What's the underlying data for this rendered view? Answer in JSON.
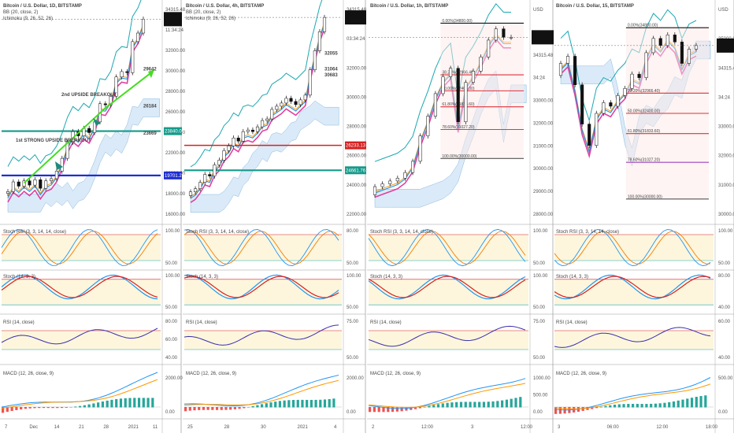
{
  "colors": {
    "bb_upper": "#1aa8b0",
    "bb_mid": "#e040a0",
    "bb_lower": "#f5a020",
    "kijun": "#d62020",
    "tenkan": "#2090e0",
    "cloud": "#cfe3f5",
    "fib_red": "#e0303a",
    "fib_purple": "#a040c0",
    "teal": "#159a8a",
    "blue_line": "#1f2fd0",
    "green_arrow": "#44dd22",
    "stoch_k": "#2196f3",
    "stoch_d": "#f57c00",
    "macd": "#2196f3",
    "signal": "#ff9800",
    "hist_pos": "#26a69a",
    "hist_neg": "#ef5350",
    "rsi": "#3a30b0",
    "candle_up": "#ffffff",
    "candle_down": "#111111"
  },
  "panels": [
    {
      "title": "Bitcoin / U.S. Dollar, 1D, BITSTAMP",
      "bb_label": "BB (20, close, 2)",
      "ichi_label": "Ichimoku (9, 26, 52, 26)",
      "stoch_rsi_label": "Stoch RSI (3, 3, 14, 14, close)",
      "stoch_label": "Stoch (14, 3, 3)",
      "rsi_label": "RSI (14, close)",
      "macd_label": "MACD (12, 26, close, 9)",
      "price_axis": [
        "34315.48",
        "11:34:24",
        "32000.00",
        "30000.00",
        "28000.00",
        "26000.00",
        "24000.00",
        "22000.00",
        "20000.00",
        "18000.00",
        "16000.00"
      ],
      "price_tags": [
        "23840.00",
        "19701.22"
      ],
      "stoch_axis": [
        "100.00",
        "50.00"
      ],
      "stoch2_axis": [
        "100.00",
        "50.00"
      ],
      "rsi_axis": [
        "80.00",
        "60.00",
        "40.00"
      ],
      "macd_axis": [
        "2000.00",
        "0.00"
      ],
      "time_axis": [
        "7",
        "Dec",
        "14",
        "21",
        "28",
        "2021",
        "11"
      ],
      "annotations": [
        "2nd UPSIDE BREAKOUT",
        "1st STRONG UPSIDE BREAKOUT",
        "29642",
        "26184",
        "23669"
      ]
    },
    {
      "title": "Bitcoin / U.S. Dollar, 4h, BITSTAMP",
      "bb_label": "BB (20, close, 2)",
      "ichi_label": "Ichimoku (9, 26, 52, 26)",
      "stoch_rsi_label": "Stoch RSI (3, 3, 14, 14, close)",
      "stoch_label": "Stoch (14, 3, 3)",
      "rsi_label": "RSI (14, close)",
      "macd_label": "MACD (12, 26, close, 9)",
      "price_axis": [
        "34315.48",
        "03:34:24",
        "32000.00",
        "30000.00",
        "28000.00",
        "26000.00",
        "24000.00",
        "22000.00"
      ],
      "price_tags": [
        "26233.13",
        "24661.76"
      ],
      "stoch_axis": [
        "80.00",
        "50.00"
      ],
      "stoch2_axis": [
        "100.00",
        "50.00"
      ],
      "rsi_axis": [
        "75.00",
        "50.00"
      ],
      "macd_axis": [
        "2000.00",
        "0.00"
      ],
      "time_axis": [
        "25",
        "28",
        "30",
        "2021",
        "4"
      ],
      "annotations": [
        "32055",
        "31064",
        "30683"
      ]
    },
    {
      "title": "Bitcoin / U.S. Dollar, 1h, BITSTAMP",
      "bb_label": "",
      "ichi_label": "",
      "stoch_rsi_label": "Stoch RSI (3, 3, 14, 14, close)",
      "stoch_label": "Stoch (14, 3, 3)",
      "rsi_label": "RSI (14, close)",
      "macd_label": "MACD (12, 26, close, 9)",
      "price_axis": [
        "USD",
        "35000.00",
        "34315.48",
        "34:24",
        "33000.00",
        "32000.00",
        "31000.00",
        "30000.00",
        "29000.00",
        "28000.00"
      ],
      "price_tags": [],
      "stoch_axis": [
        "100.00",
        "50.00"
      ],
      "stoch2_axis": [
        "100.00",
        "50.00"
      ],
      "rsi_axis": [
        "75.00",
        "50.00"
      ],
      "macd_axis": [
        "1000.00",
        "500.00",
        "0.00"
      ],
      "time_axis": [
        "2",
        "12:00",
        "3",
        "12:00"
      ],
      "annotations": [
        "0.00%(34800.00)",
        "38.20%(32966.40)",
        "50.00%(32400.00)",
        "61.80%(31833.60)",
        "78.60%(31027.20)",
        "100.00%(30000.00)"
      ]
    },
    {
      "title": "Bitcoin / U.S. Dollar, 15, BITSTAMP",
      "bb_label": "",
      "ichi_label": "",
      "stoch_rsi_label": "Stoch RSI (3, 3, 14, 14, close)",
      "stoch_label": "Stoch (14, 3, 3)",
      "rsi_label": "RSI (14, close)",
      "macd_label": "MACD (12, 26, close, 9)",
      "price_axis": [
        "USD",
        "35000.00",
        "34315.48",
        "34:24",
        "33000.00",
        "32000.00",
        "31000.00",
        "30000.00"
      ],
      "price_tags": [],
      "stoch_axis": [
        "100.00",
        "50.00"
      ],
      "stoch2_axis": [
        "80.00",
        "40.00"
      ],
      "rsi_axis": [
        "60.00",
        "40.00"
      ],
      "macd_axis": [
        "500.00",
        "0.00"
      ],
      "time_axis": [
        "3",
        "06:00",
        "12:00",
        "18:00"
      ],
      "annotations": [
        "0.00%(34800.00)",
        "38.20%(32966.40)",
        "50.00%(32400.00)",
        "61.80%(31833.60)",
        "78.60%(31027.20)",
        "100.00%(30000.00)"
      ]
    }
  ],
  "chart_data": [
    {
      "type": "line",
      "title": "Bitcoin / U.S. Dollar, 1D, BITSTAMP",
      "ylim": [
        15500,
        35500
      ],
      "series": [
        {
          "name": "close",
          "values": [
            18200,
            19100,
            18700,
            19200,
            18800,
            19300,
            18500,
            19200,
            19400,
            20100,
            21300,
            22800,
            23800,
            23400,
            24100,
            23700,
            24700,
            26400,
            26300,
            27100,
            28900,
            29400,
            29300,
            32200,
            33000,
            34300
          ]
        }
      ],
      "levels": {
        "bb_upper": 29642,
        "bb_mid": 23669,
        "bb_lower": 26184,
        "teal": 23840,
        "blue": 19701.22
      }
    },
    {
      "type": "line",
      "title": "Bitcoin / U.S. Dollar, 4h, BITSTAMP",
      "ylim": [
        21500,
        35000
      ],
      "series": [
        {
          "name": "close",
          "values": [
            23300,
            23500,
            23900,
            24400,
            24300,
            25000,
            25300,
            25900,
            26200,
            26700,
            26500,
            27100,
            27200,
            27100,
            27400,
            27800,
            27900,
            28500,
            28700,
            28900,
            29200,
            29000,
            28800,
            29100,
            29400,
            31000,
            32200,
            33400,
            34300
          ]
        }
      ],
      "levels": {
        "bb_upper": 32055,
        "bb_mid": 30683,
        "bb_lower": 31064,
        "red": 26233.13,
        "teal": 24661.76
      }
    },
    {
      "type": "line",
      "title": "Bitcoin / U.S. Dollar, 1h, BITSTAMP",
      "ylim": [
        27800,
        35400
      ],
      "series": [
        {
          "name": "close",
          "values": [
            29000,
            29100,
            29200,
            29300,
            29500,
            29900,
            30800,
            31500,
            32300,
            32900,
            33200,
            31300,
            32700,
            33100,
            33600,
            34200,
            34600,
            34300,
            34300
          ]
        }
      ],
      "fib": [
        {
          "label": "0.00%(34800.00)",
          "value": 34800
        },
        {
          "label": "38.20%(32966.40)",
          "value": 32966.4
        },
        {
          "label": "50.00%(32400.00)",
          "value": 32400
        },
        {
          "label": "61.80%(31833.60)",
          "value": 31833.6
        },
        {
          "label": "78.60%(31027.20)",
          "value": 31027.2
        },
        {
          "label": "100.00%(30000.00)",
          "value": 30000
        }
      ]
    },
    {
      "type": "line",
      "title": "Bitcoin / U.S. Dollar, 15, BITSTAMP",
      "ylim": [
        29400,
        35400
      ],
      "series": [
        {
          "name": "close",
          "values": [
            33800,
            34000,
            33200,
            32100,
            31500,
            32400,
            32700,
            32600,
            32900,
            33100,
            33500,
            33400,
            34100,
            34500,
            34300,
            34600,
            34400,
            33800,
            34200,
            34300
          ]
        }
      ],
      "fib": [
        {
          "label": "0.00%(34800.00)",
          "value": 34800
        },
        {
          "label": "38.20%(32966.40)",
          "value": 32966.4
        },
        {
          "label": "50.00%(32400.00)",
          "value": 32400
        },
        {
          "label": "61.80%(31833.60)",
          "value": 31833.6
        },
        {
          "label": "78.60%(31027.20)",
          "value": 31027.2
        },
        {
          "label": "100.00%(30000.00)",
          "value": 30000
        }
      ]
    }
  ]
}
